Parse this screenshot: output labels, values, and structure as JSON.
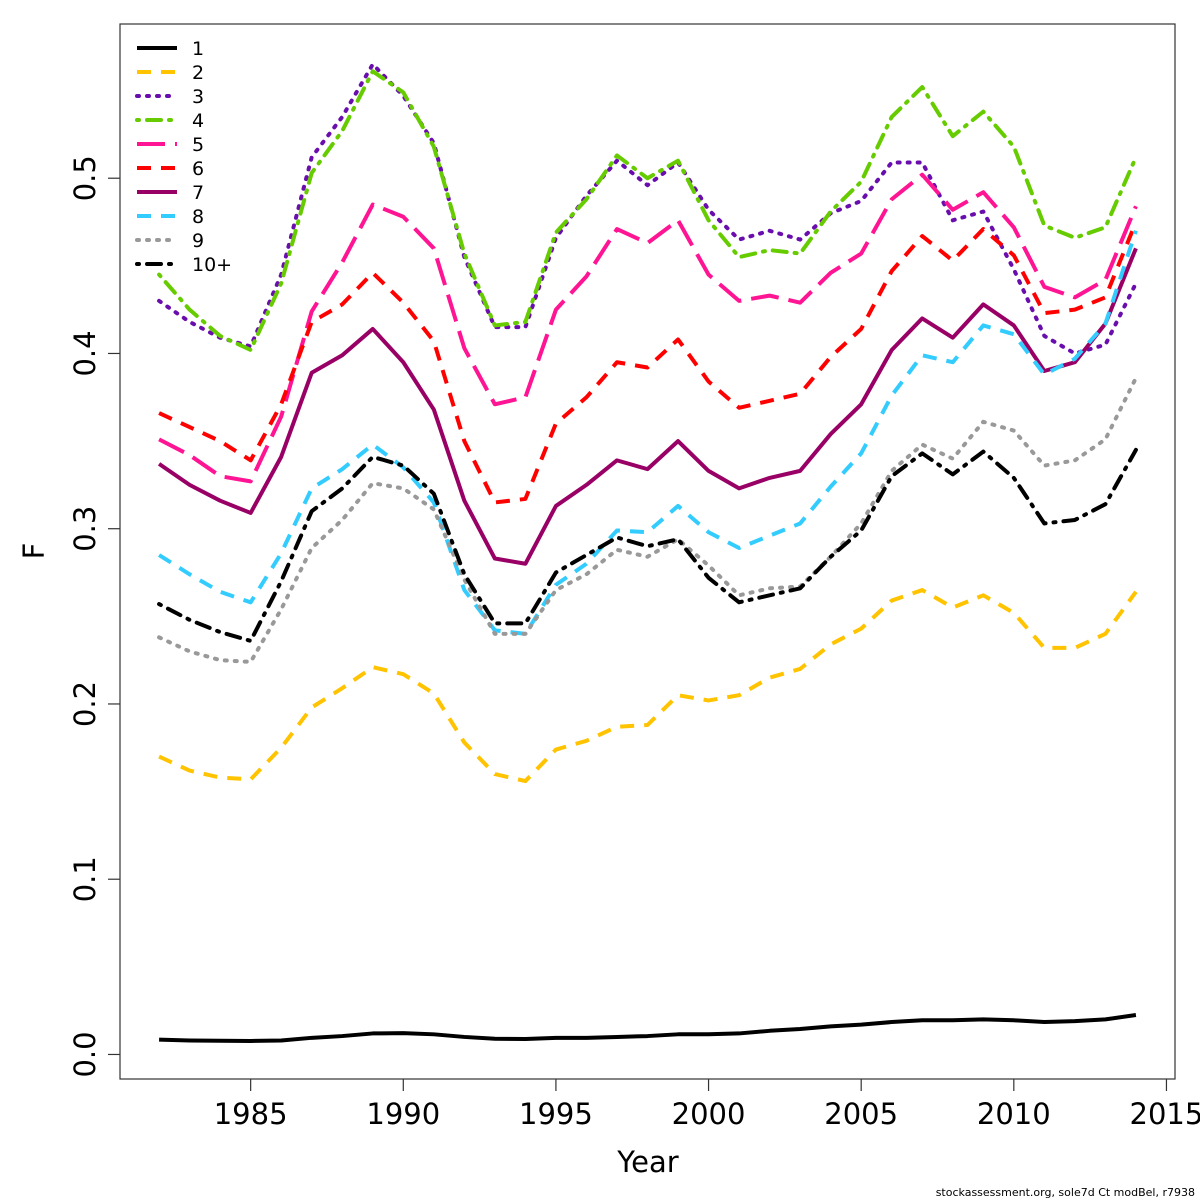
{
  "chart_data": {
    "type": "line",
    "xlabel": "Year",
    "ylabel": "F",
    "footer": "stockassessment.org, sole7d Ct modBel, r7938",
    "x": [
      1982,
      1983,
      1984,
      1985,
      1986,
      1987,
      1988,
      1989,
      1990,
      1991,
      1992,
      1993,
      1994,
      1995,
      1996,
      1997,
      1998,
      1999,
      2000,
      2001,
      2002,
      2003,
      2004,
      2005,
      2006,
      2007,
      2008,
      2009,
      2010,
      2011,
      2012,
      2013,
      2014
    ],
    "xlim": [
      1980.72,
      2015.28
    ],
    "xticks": [
      1985,
      1990,
      1995,
      2000,
      2005,
      2010,
      2015
    ],
    "ylim": [
      -0.014,
      0.588
    ],
    "yticks": [
      {
        "value": 0,
        "label": "0.0"
      },
      0.1,
      0.2,
      0.3,
      0.4,
      0.5
    ],
    "legend": "top-left",
    "series": [
      {
        "name": "1",
        "color": "#000000",
        "dash": "solid",
        "values": [
          0.0085,
          0.008,
          0.0078,
          0.0077,
          0.008,
          0.0095,
          0.0105,
          0.012,
          0.0122,
          0.0115,
          0.01,
          0.009,
          0.0088,
          0.0095,
          0.0095,
          0.01,
          0.0105,
          0.0115,
          0.0115,
          0.012,
          0.0135,
          0.0145,
          0.016,
          0.017,
          0.0185,
          0.0195,
          0.0195,
          0.02,
          0.0195,
          0.0185,
          0.019,
          0.02,
          0.0225
        ]
      },
      {
        "name": "2",
        "color": "#ffc300",
        "dash": "dashed",
        "values": [
          0.17,
          0.162,
          0.158,
          0.157,
          0.175,
          0.198,
          0.209,
          0.221,
          0.217,
          0.206,
          0.178,
          0.16,
          0.156,
          0.174,
          0.179,
          0.187,
          0.188,
          0.205,
          0.202,
          0.205,
          0.215,
          0.22,
          0.234,
          0.243,
          0.259,
          0.265,
          0.255,
          0.262,
          0.252,
          0.232,
          0.232,
          0.24,
          0.264
        ]
      },
      {
        "name": "3",
        "color": "#6a0dad",
        "dash": "dotted",
        "values": [
          0.43,
          0.418,
          0.409,
          0.404,
          0.445,
          0.512,
          0.535,
          0.565,
          0.547,
          0.52,
          0.455,
          0.415,
          0.415,
          0.466,
          0.49,
          0.51,
          0.496,
          0.509,
          0.482,
          0.465,
          0.47,
          0.465,
          0.48,
          0.487,
          0.509,
          0.509,
          0.476,
          0.481,
          0.448,
          0.41,
          0.4,
          0.405,
          0.44
        ]
      },
      {
        "name": "4",
        "color": "#66cc00",
        "dash": "dotdash",
        "values": [
          0.445,
          0.425,
          0.41,
          0.402,
          0.44,
          0.503,
          0.527,
          0.561,
          0.549,
          0.518,
          0.457,
          0.416,
          0.418,
          0.469,
          0.488,
          0.513,
          0.5,
          0.51,
          0.476,
          0.455,
          0.459,
          0.457,
          0.481,
          0.498,
          0.535,
          0.552,
          0.524,
          0.538,
          0.518,
          0.473,
          0.466,
          0.472,
          0.512
        ]
      },
      {
        "name": "5",
        "color": "#ff1493",
        "dash": "longdash",
        "values": [
          0.351,
          0.342,
          0.33,
          0.327,
          0.364,
          0.424,
          0.452,
          0.485,
          0.478,
          0.46,
          0.403,
          0.371,
          0.375,
          0.425,
          0.444,
          0.471,
          0.463,
          0.476,
          0.445,
          0.43,
          0.433,
          0.429,
          0.446,
          0.457,
          0.488,
          0.502,
          0.482,
          0.492,
          0.472,
          0.438,
          0.432,
          0.442,
          0.484
        ]
      },
      {
        "name": "6",
        "color": "#ff0000",
        "dash": "dashed",
        "values": [
          0.366,
          0.358,
          0.35,
          0.339,
          0.371,
          0.418,
          0.428,
          0.446,
          0.429,
          0.407,
          0.35,
          0.315,
          0.317,
          0.36,
          0.375,
          0.395,
          0.392,
          0.408,
          0.384,
          0.369,
          0.373,
          0.377,
          0.398,
          0.414,
          0.447,
          0.467,
          0.453,
          0.471,
          0.456,
          0.423,
          0.425,
          0.432,
          0.475
        ]
      },
      {
        "name": "7",
        "color": "#990066",
        "dash": "solid",
        "values": [
          0.337,
          0.325,
          0.316,
          0.309,
          0.341,
          0.389,
          0.399,
          0.414,
          0.395,
          0.368,
          0.316,
          0.283,
          0.28,
          0.313,
          0.325,
          0.339,
          0.334,
          0.35,
          0.333,
          0.323,
          0.329,
          0.333,
          0.354,
          0.371,
          0.402,
          0.42,
          0.409,
          0.428,
          0.416,
          0.39,
          0.395,
          0.417,
          0.46
        ]
      },
      {
        "name": "8",
        "color": "#33ccff",
        "dash": "dashed",
        "values": [
          0.285,
          0.274,
          0.264,
          0.258,
          0.286,
          0.323,
          0.334,
          0.348,
          0.335,
          0.315,
          0.265,
          0.242,
          0.24,
          0.268,
          0.28,
          0.299,
          0.298,
          0.313,
          0.298,
          0.289,
          0.296,
          0.303,
          0.324,
          0.343,
          0.376,
          0.399,
          0.395,
          0.416,
          0.411,
          0.388,
          0.397,
          0.417,
          0.47
        ]
      },
      {
        "name": "9",
        "color": "#999999",
        "dash": "dotted",
        "values": [
          0.238,
          0.23,
          0.225,
          0.224,
          0.254,
          0.289,
          0.305,
          0.326,
          0.323,
          0.311,
          0.271,
          0.24,
          0.24,
          0.265,
          0.274,
          0.288,
          0.284,
          0.294,
          0.279,
          0.262,
          0.266,
          0.267,
          0.284,
          0.303,
          0.333,
          0.348,
          0.34,
          0.361,
          0.356,
          0.336,
          0.339,
          0.351,
          0.386
        ]
      },
      {
        "name": "10+",
        "color": "#000000",
        "dash": "dotdash",
        "values": [
          0.257,
          0.248,
          0.241,
          0.236,
          0.27,
          0.31,
          0.323,
          0.341,
          0.336,
          0.32,
          0.274,
          0.246,
          0.246,
          0.275,
          0.285,
          0.295,
          0.29,
          0.294,
          0.272,
          0.258,
          0.262,
          0.266,
          0.284,
          0.299,
          0.33,
          0.343,
          0.331,
          0.344,
          0.329,
          0.303,
          0.305,
          0.314,
          0.345
        ]
      }
    ]
  }
}
